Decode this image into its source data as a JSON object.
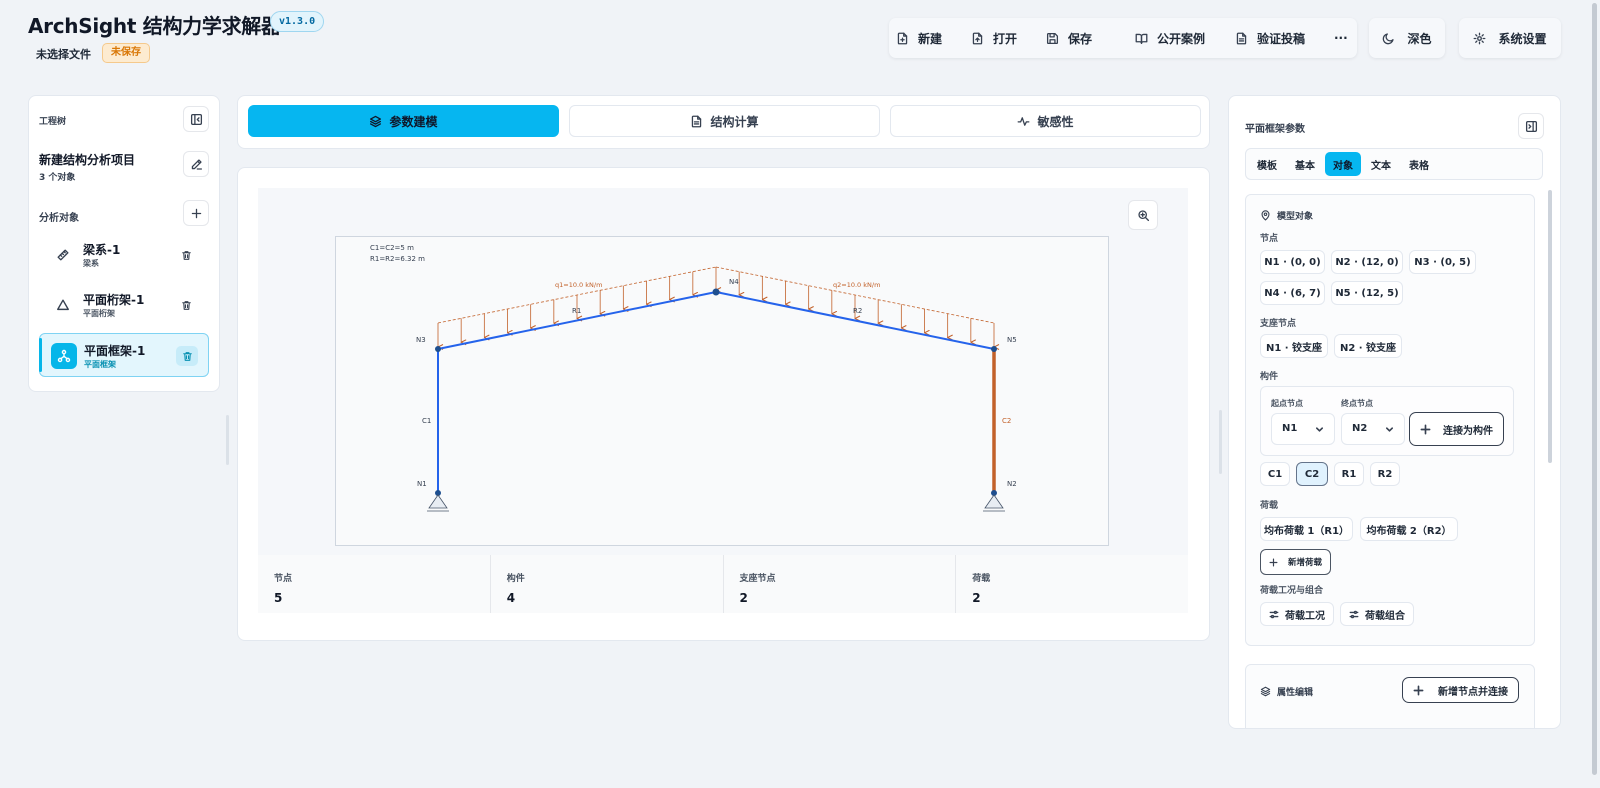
{
  "header": {
    "title": "ArchSight 结构力学求解器",
    "version": "v1.3.0",
    "file_status": "未选择文件",
    "save_status": "未保存"
  },
  "toolbar": {
    "new": "新建",
    "open": "打开",
    "save": "保存",
    "public_cases": "公开案例",
    "verify": "验证投稿",
    "more": "···",
    "dark_mode": "深色",
    "settings": "系统设置"
  },
  "sidebar": {
    "title": "工程树",
    "project_name": "新建结构分析项目",
    "project_count": "3 个对象",
    "objects_label": "分析对象",
    "items": [
      {
        "name": "梁系-1",
        "type": "梁系",
        "icon": "ruler-icon"
      },
      {
        "name": "平面桁架-1",
        "type": "平面桁架",
        "icon": "triangle-icon"
      },
      {
        "name": "平面框架-1",
        "type": "平面框架",
        "icon": "network-icon",
        "active": true
      }
    ]
  },
  "mode_tabs": [
    {
      "label": "参数建模",
      "icon": "layers-icon",
      "active": true
    },
    {
      "label": "结构计算",
      "icon": "file-icon"
    },
    {
      "label": "敏感性",
      "icon": "activity-icon"
    }
  ],
  "diagram": {
    "info_line1": "C1=C2=5 m",
    "info_line2": "R1=R2=6.32 m",
    "load1_label": "q1=10.0 kN/m",
    "load2_label": "q2=10.0 kN/m",
    "nodes": {
      "n1": "N1",
      "n2": "N2",
      "n3": "N3",
      "n4": "N4",
      "n5": "N5"
    },
    "members": {
      "c1": "C1",
      "c2": "C2",
      "r1": "R1",
      "r2": "R2"
    },
    "colors": {
      "member": "#2563eb",
      "selected_member": "#c2612a",
      "load": "#c2612a"
    }
  },
  "stats": [
    {
      "label": "节点",
      "value": "5"
    },
    {
      "label": "构件",
      "value": "4"
    },
    {
      "label": "支座节点",
      "value": "2"
    },
    {
      "label": "荷载",
      "value": "2"
    }
  ],
  "right_panel": {
    "title": "平面框架参数",
    "subtabs": [
      "模板",
      "基本",
      "对象",
      "文本",
      "表格"
    ],
    "active_subtab": "对象",
    "model_objects_title": "模型对象",
    "nodes_label": "节点",
    "nodes": [
      "N1 · (0, 0)",
      "N2 · (12, 0)",
      "N3 · (0, 5)",
      "N4 · (6, 7)",
      "N5 · (12, 5)"
    ],
    "supports_label": "支座节点",
    "supports": [
      "N1 · 铰支座",
      "N2 · 铰支座"
    ],
    "members_label": "构件",
    "start_node_label": "起点节点",
    "end_node_label": "终点节点",
    "start_node_value": "N1",
    "end_node_value": "N2",
    "connect_label": "连接为构件",
    "members": [
      "C1",
      "C2",
      "R1",
      "R2"
    ],
    "selected_member": "C2",
    "loads_label": "荷载",
    "loads": [
      "均布荷载 1（R1）",
      "均布荷载 2（R2）"
    ],
    "add_load": "新增荷载",
    "load_cases_label": "荷载工况与组合",
    "load_case": "荷载工况",
    "load_combo": "荷载组合",
    "props_title": "属性编辑",
    "add_node_connect": "新增节点并连接"
  }
}
